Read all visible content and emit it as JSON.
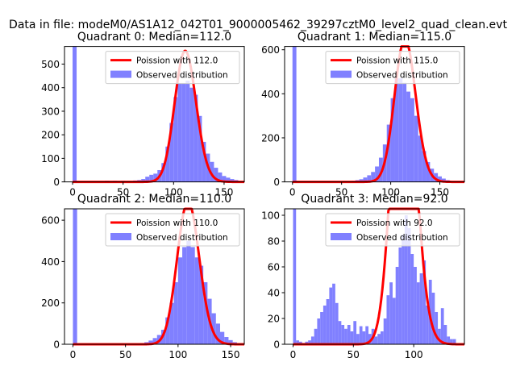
{
  "figure": {
    "suptitle": "Data in file: modeM0/AS1A12_042T01_9000005462_39297cztM0_level2_quad_clean.evt"
  },
  "colors": {
    "poisson_line": "#ff0000",
    "histogram_fill": "#8080ff",
    "axes": "#000000",
    "background": "#ffffff"
  },
  "chart_data": [
    {
      "type": "bar",
      "title": "Quadrant 0: Median=112.0",
      "xlabel": "",
      "ylabel": "",
      "xlim": [
        -8,
        170
      ],
      "ylim": [
        0,
        575
      ],
      "xticks": [
        0,
        50,
        100,
        150
      ],
      "yticks": [
        0,
        100,
        200,
        300,
        400,
        500
      ],
      "legend": {
        "position": "upper right",
        "entries": [
          "Poission with 112.0",
          "Observed distribution"
        ]
      },
      "grid": false,
      "bin_width": 4.0,
      "histogram": {
        "name": "Observed distribution",
        "bin_starts": [
          0,
          24,
          28,
          32,
          36,
          40,
          44,
          48,
          52,
          56,
          60,
          64,
          68,
          72,
          76,
          80,
          84,
          88,
          92,
          96,
          100,
          104,
          108,
          112,
          116,
          120,
          124,
          128,
          132,
          136,
          140,
          144,
          148,
          152,
          156,
          160
        ],
        "counts": [
          575,
          2,
          3,
          5,
          4,
          5,
          3,
          5,
          4,
          4,
          6,
          8,
          12,
          22,
          30,
          35,
          50,
          80,
          150,
          250,
          360,
          420,
          420,
          430,
          400,
          370,
          280,
          170,
          120,
          85,
          60,
          40,
          25,
          18,
          12,
          8
        ]
      },
      "poisson": {
        "name": "Poission with 112.0",
        "lambda": 112.0,
        "scale": 4.0,
        "total": 3691
      }
    },
    {
      "type": "bar",
      "title": "Quadrant 1: Median=115.0",
      "xlabel": "",
      "ylabel": "",
      "xlim": [
        -8,
        175
      ],
      "ylim": [
        0,
        615
      ],
      "xticks": [
        0,
        50,
        100,
        150
      ],
      "yticks": [
        0,
        200,
        400,
        600
      ],
      "legend": {
        "position": "upper right",
        "entries": [
          "Poission with 115.0",
          "Observed distribution"
        ]
      },
      "grid": false,
      "bin_width": 4.0,
      "histogram": {
        "name": "Observed distribution",
        "bin_starts": [
          0,
          60,
          64,
          68,
          72,
          76,
          80,
          84,
          88,
          92,
          96,
          100,
          104,
          108,
          112,
          116,
          120,
          124,
          128,
          132,
          136,
          140,
          144,
          148,
          152,
          156,
          160
        ],
        "counts": [
          615,
          5,
          8,
          12,
          20,
          30,
          45,
          70,
          110,
          170,
          260,
          380,
          470,
          470,
          450,
          410,
          380,
          300,
          210,
          140,
          90,
          60,
          40,
          25,
          15,
          8,
          4
        ]
      },
      "poisson": {
        "name": "Poission with 115.0",
        "lambda": 115.0,
        "scale": 4.0,
        "total": 4372
      }
    },
    {
      "type": "bar",
      "title": "Quadrant 2: Median=110.0",
      "xlabel": "",
      "ylabel": "",
      "xlim": [
        -8,
        163
      ],
      "ylim": [
        0,
        655
      ],
      "xticks": [
        0,
        50,
        100,
        150
      ],
      "yticks": [
        0,
        200,
        400,
        600
      ],
      "legend": {
        "position": "upper right",
        "entries": [
          "Poission with 110.0",
          "Observed distribution"
        ]
      },
      "grid": false,
      "bin_width": 4.0,
      "histogram": {
        "name": "Observed distribution",
        "bin_starts": [
          0,
          64,
          68,
          72,
          76,
          80,
          84,
          88,
          92,
          96,
          100,
          104,
          108,
          112,
          116,
          120,
          124,
          128,
          132,
          136,
          140,
          144,
          148,
          152
        ],
        "counts": [
          655,
          6,
          10,
          18,
          30,
          45,
          70,
          130,
          200,
          300,
          420,
          470,
          500,
          470,
          420,
          380,
          300,
          220,
          150,
          100,
          60,
          35,
          20,
          10
        ]
      },
      "poisson": {
        "name": "Poission with 110.0",
        "lambda": 110.0,
        "scale": 4.0,
        "total": 4544
      }
    },
    {
      "type": "bar",
      "title": "Quadrant 3: Median=92.0",
      "xlabel": "",
      "ylabel": "",
      "xlim": [
        -7,
        142
      ],
      "ylim": [
        0,
        105
      ],
      "xticks": [
        0,
        50,
        100
      ],
      "yticks": [
        0,
        20,
        40,
        60,
        80,
        100
      ],
      "legend": {
        "position": "upper right",
        "entries": [
          "Poission with 92.0",
          "Observed distribution"
        ]
      },
      "grid": false,
      "bin_width": 2.5,
      "histogram": {
        "name": "Observed distribution",
        "bin_starts": [
          0,
          2.5,
          5,
          7.5,
          10,
          12.5,
          15,
          17.5,
          20,
          22.5,
          25,
          27.5,
          30,
          32.5,
          35,
          37.5,
          40,
          42.5,
          45,
          47.5,
          50,
          52.5,
          55,
          57.5,
          60,
          62.5,
          65,
          67.5,
          70,
          72.5,
          75,
          77.5,
          80,
          82.5,
          85,
          87.5,
          90,
          92.5,
          95,
          97.5,
          100,
          102.5,
          105,
          107.5,
          110,
          112.5,
          115,
          117.5,
          120,
          122.5,
          125,
          127.5,
          130,
          132.5
        ],
        "counts": [
          105,
          3,
          2,
          1,
          2,
          3,
          6,
          12,
          20,
          25,
          30,
          35,
          44,
          47,
          32,
          18,
          15,
          12,
          15,
          10,
          18,
          8,
          14,
          10,
          14,
          8,
          12,
          6,
          8,
          10,
          20,
          38,
          48,
          36,
          60,
          75,
          85,
          100,
          90,
          70,
          60,
          48,
          55,
          65,
          30,
          50,
          40,
          25,
          12,
          28,
          15,
          6,
          4,
          4
        ]
      },
      "poisson": {
        "name": "Poission with 92.0",
        "lambda": 92.0,
        "scale": 2.5,
        "total": 2425
      }
    }
  ]
}
